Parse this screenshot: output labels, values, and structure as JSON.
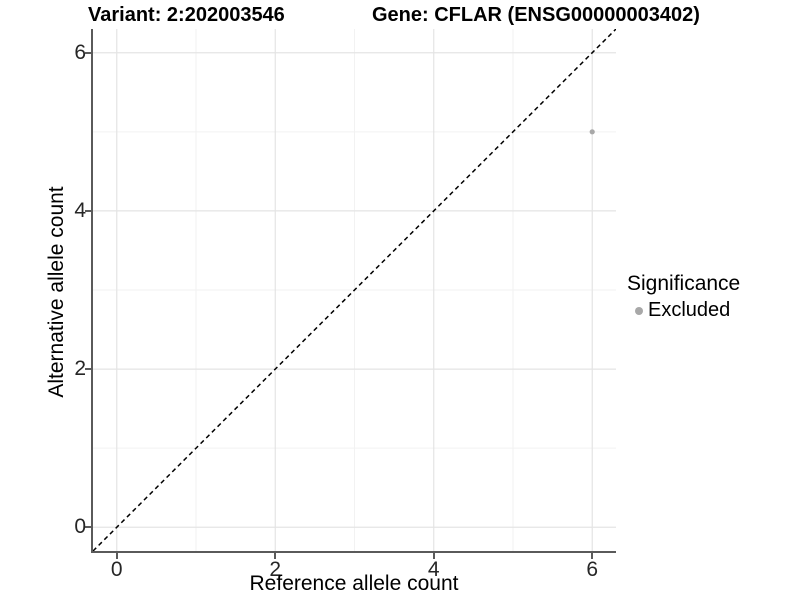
{
  "header": {
    "variant_title": "Variant: 2:202003546",
    "gene_title": "Gene: CFLAR (ENSG00000003402)"
  },
  "chart_data": {
    "type": "scatter",
    "title_left": "Variant: 2:202003546",
    "title_right": "Gene: CFLAR (ENSG00000003402)",
    "xlabel": "Reference allele count",
    "ylabel": "Alternative allele count",
    "xlim": [
      -0.3,
      6.3
    ],
    "ylim": [
      -0.3,
      6.3
    ],
    "x_ticks": [
      0,
      2,
      4,
      6
    ],
    "y_ticks": [
      0,
      2,
      4,
      6
    ],
    "x_minor_ticks": [
      1,
      3,
      5
    ],
    "y_minor_ticks": [
      1,
      3,
      5
    ],
    "grid": true,
    "series": [
      {
        "name": "Excluded",
        "points": [
          {
            "x": 6,
            "y": 5
          }
        ]
      }
    ],
    "reference_line": {
      "kind": "identity",
      "from": [
        -0.3,
        -0.3
      ],
      "to": [
        6.3,
        6.3
      ],
      "style": "dashed",
      "color": "#000000"
    },
    "legend": {
      "title": "Significance",
      "position": "right",
      "entries": [
        {
          "label": "Excluded",
          "color": "#a8a8a8",
          "marker": "circle"
        }
      ]
    },
    "colors": {
      "point": "#a8a8a8",
      "grid_major": "#e4e4e4",
      "grid_minor": "#f2f2f2",
      "axis": "#5a5a5a",
      "tick_text": "#262626",
      "title_text": "#000000"
    }
  }
}
